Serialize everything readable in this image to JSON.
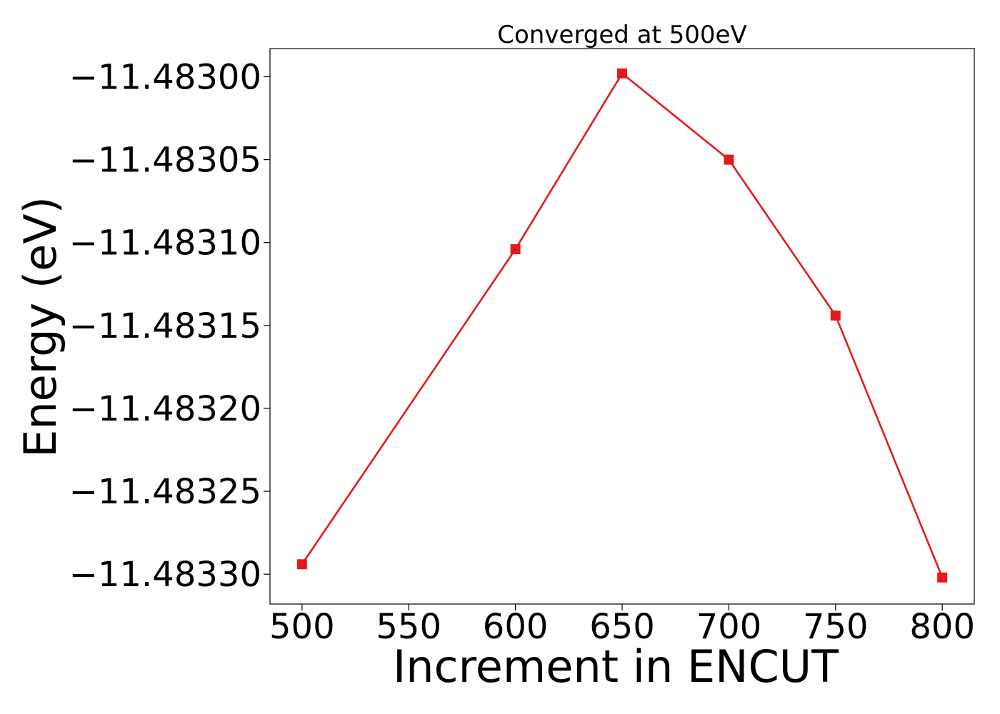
{
  "chart_data": {
    "type": "line",
    "title": "Converged at 500eV",
    "xlabel": "Increment in ENCUT",
    "ylabel": "Energy (eV)",
    "x": [
      500,
      600,
      650,
      700,
      750,
      800
    ],
    "series": [
      {
        "values": [
          -11.483294,
          -11.483104,
          -11.482998,
          -11.48305,
          -11.483144,
          -11.483302
        ],
        "color": "#e31a1c",
        "marker": "square"
      }
    ],
    "xlim": [
      485,
      815
    ],
    "ylim": [
      -11.483318,
      -11.482983
    ],
    "xticks": [
      500,
      550,
      600,
      650,
      700,
      750,
      800
    ],
    "xtick_labels": [
      "500",
      "550",
      "600",
      "650",
      "700",
      "750",
      "800"
    ],
    "yticks": [
      -11.483,
      -11.48305,
      -11.4831,
      -11.48315,
      -11.4832,
      -11.48325,
      -11.4833
    ],
    "ytick_labels": [
      "−11.48300",
      "−11.48305",
      "−11.48310",
      "−11.48315",
      "−11.48320",
      "−11.48325",
      "−11.48330"
    ],
    "grid": false,
    "legend": "none"
  }
}
